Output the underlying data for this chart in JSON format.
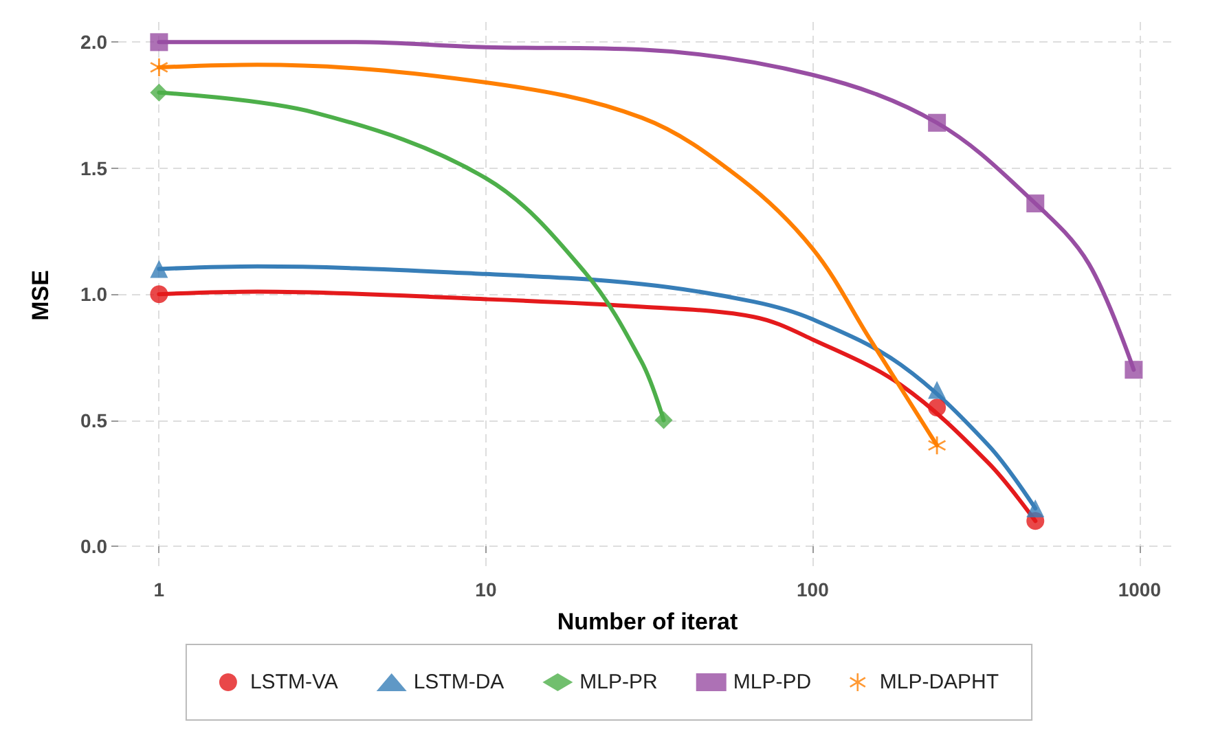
{
  "chart_data": {
    "type": "line",
    "xlabel": "Number of iterat",
    "ylabel": "MSE",
    "log": "x",
    "grid": true,
    "legend": "bottom",
    "xlim": [
      0.75,
      1300
    ],
    "ylim": [
      -0.09,
      2.08
    ],
    "xticks": [
      1,
      10,
      100,
      1000
    ],
    "yticks": [
      {
        "value": 0,
        "label": "0.0"
      },
      {
        "value": 0.5,
        "label": "0.5"
      },
      {
        "value": 1,
        "label": "1.0"
      },
      {
        "value": 1.5,
        "label": "1.5"
      },
      {
        "value": 2,
        "label": "2.0"
      }
    ],
    "series": [
      {
        "color": "#e41a1c",
        "marker": "none",
        "x": [
          1,
          2,
          10,
          30,
          66,
          100,
          186,
          345,
          480
        ],
        "values": [
          1.0,
          1.01,
          0.98,
          0.95,
          0.91,
          0.82,
          0.64,
          0.33,
          0.1
        ]
      },
      {
        "color": "#377eb8",
        "marker": "none",
        "x": [
          1,
          2,
          10,
          30,
          66,
          100,
          186,
          345,
          480
        ],
        "values": [
          1.1,
          1.11,
          1.08,
          1.04,
          0.97,
          0.9,
          0.72,
          0.4,
          0.15
        ]
      },
      {
        "color": "#4daf4a",
        "marker": "none",
        "x": [
          1,
          3,
          10,
          20,
          30,
          35
        ],
        "values": [
          1.8,
          1.72,
          1.46,
          1.09,
          0.73,
          0.5
        ]
      },
      {
        "color": "#984ea3",
        "marker": "none",
        "x": [
          1,
          4,
          10,
          30,
          100,
          240,
          480,
          700,
          960
        ],
        "values": [
          2.0,
          2.0,
          1.98,
          1.97,
          1.87,
          1.68,
          1.36,
          1.12,
          0.7
        ]
      },
      {
        "color": "#ff7f00",
        "marker": "none",
        "x": [
          1,
          2,
          10,
          30,
          60,
          100,
          150,
          240
        ],
        "values": [
          1.9,
          1.91,
          1.84,
          1.7,
          1.46,
          1.18,
          0.82,
          0.4
        ]
      },
      {
        "type": "scatter",
        "name": "LSTM-VA",
        "color": "#e41a1c",
        "marker": "circle",
        "x": [
          1,
          240,
          480
        ],
        "values": [
          1.0,
          0.55,
          0.1
        ]
      },
      {
        "type": "scatter",
        "name": "LSTM-DA",
        "color": "#377eb8",
        "marker": "triangle",
        "x": [
          1,
          240,
          480
        ],
        "values": [
          1.1,
          0.62,
          0.15
        ]
      },
      {
        "type": "scatter",
        "name": "MLP-PR",
        "color": "#4daf4a",
        "marker": "diamond",
        "x": [
          1,
          35
        ],
        "values": [
          1.8,
          0.5
        ]
      },
      {
        "type": "scatter",
        "name": "MLP-PD",
        "color": "#984ea3",
        "marker": "square",
        "x": [
          1,
          240,
          480,
          960
        ],
        "values": [
          2.0,
          1.68,
          1.36,
          0.7
        ]
      },
      {
        "type": "scatter",
        "name": "MLP-DAPHT",
        "color": "#ff7f00",
        "marker": "star",
        "x": [
          1,
          240
        ],
        "values": [
          1.9,
          0.4
        ]
      }
    ]
  }
}
